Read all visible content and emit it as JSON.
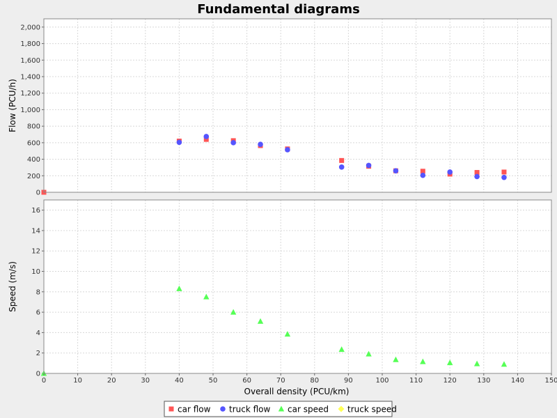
{
  "chart_data": {
    "type": "scatter",
    "title": "Fundamental diagrams",
    "xlabel": "Overall density (PCU/km)",
    "xlim": [
      0,
      150
    ],
    "xticks": [
      "0",
      "10",
      "20",
      "30",
      "40",
      "50",
      "60",
      "70",
      "80",
      "90",
      "100",
      "110",
      "120",
      "130",
      "140",
      "150"
    ],
    "grid": true,
    "legend_position": "bottom-center",
    "x": [
      0,
      40,
      48,
      56,
      64,
      72,
      88,
      96,
      104,
      112,
      120,
      128,
      136
    ],
    "panels": [
      {
        "ylabel": "Flow (PCU/h)",
        "ylim": [
          0,
          2100
        ],
        "yticks": [
          "0",
          "200",
          "400",
          "600",
          "800",
          "1,000",
          "1,200",
          "1,400",
          "1,600",
          "1,800",
          "2,000"
        ],
        "series": [
          {
            "name": "car flow",
            "marker": "square",
            "color": "#ff5555",
            "values": [
              0,
              620,
              640,
              625,
              565,
              525,
              385,
              315,
              260,
              255,
              220,
              240,
              245
            ]
          },
          {
            "name": "truck flow",
            "marker": "circle",
            "color": "#5555ff",
            "values": [
              null,
              605,
              675,
              600,
              580,
              515,
              305,
              325,
              260,
              205,
              245,
              190,
              180
            ]
          }
        ]
      },
      {
        "ylabel": "Speed (m/s)",
        "ylim": [
          0,
          17
        ],
        "yticks": [
          "0",
          "2",
          "4",
          "6",
          "8",
          "10",
          "12",
          "14",
          "16"
        ],
        "series": [
          {
            "name": "car speed",
            "marker": "triangle",
            "color": "#55ff55",
            "values": [
              0,
              8.3,
              7.5,
              6.0,
              5.1,
              3.85,
              2.35,
              1.9,
              1.35,
              1.15,
              1.05,
              0.95,
              0.9
            ]
          },
          {
            "name": "truck speed",
            "marker": "diamond",
            "color": "#ffff55",
            "values": [
              null,
              null,
              null,
              null,
              null,
              null,
              null,
              null,
              null,
              null,
              null,
              null,
              null
            ]
          }
        ]
      }
    ]
  }
}
